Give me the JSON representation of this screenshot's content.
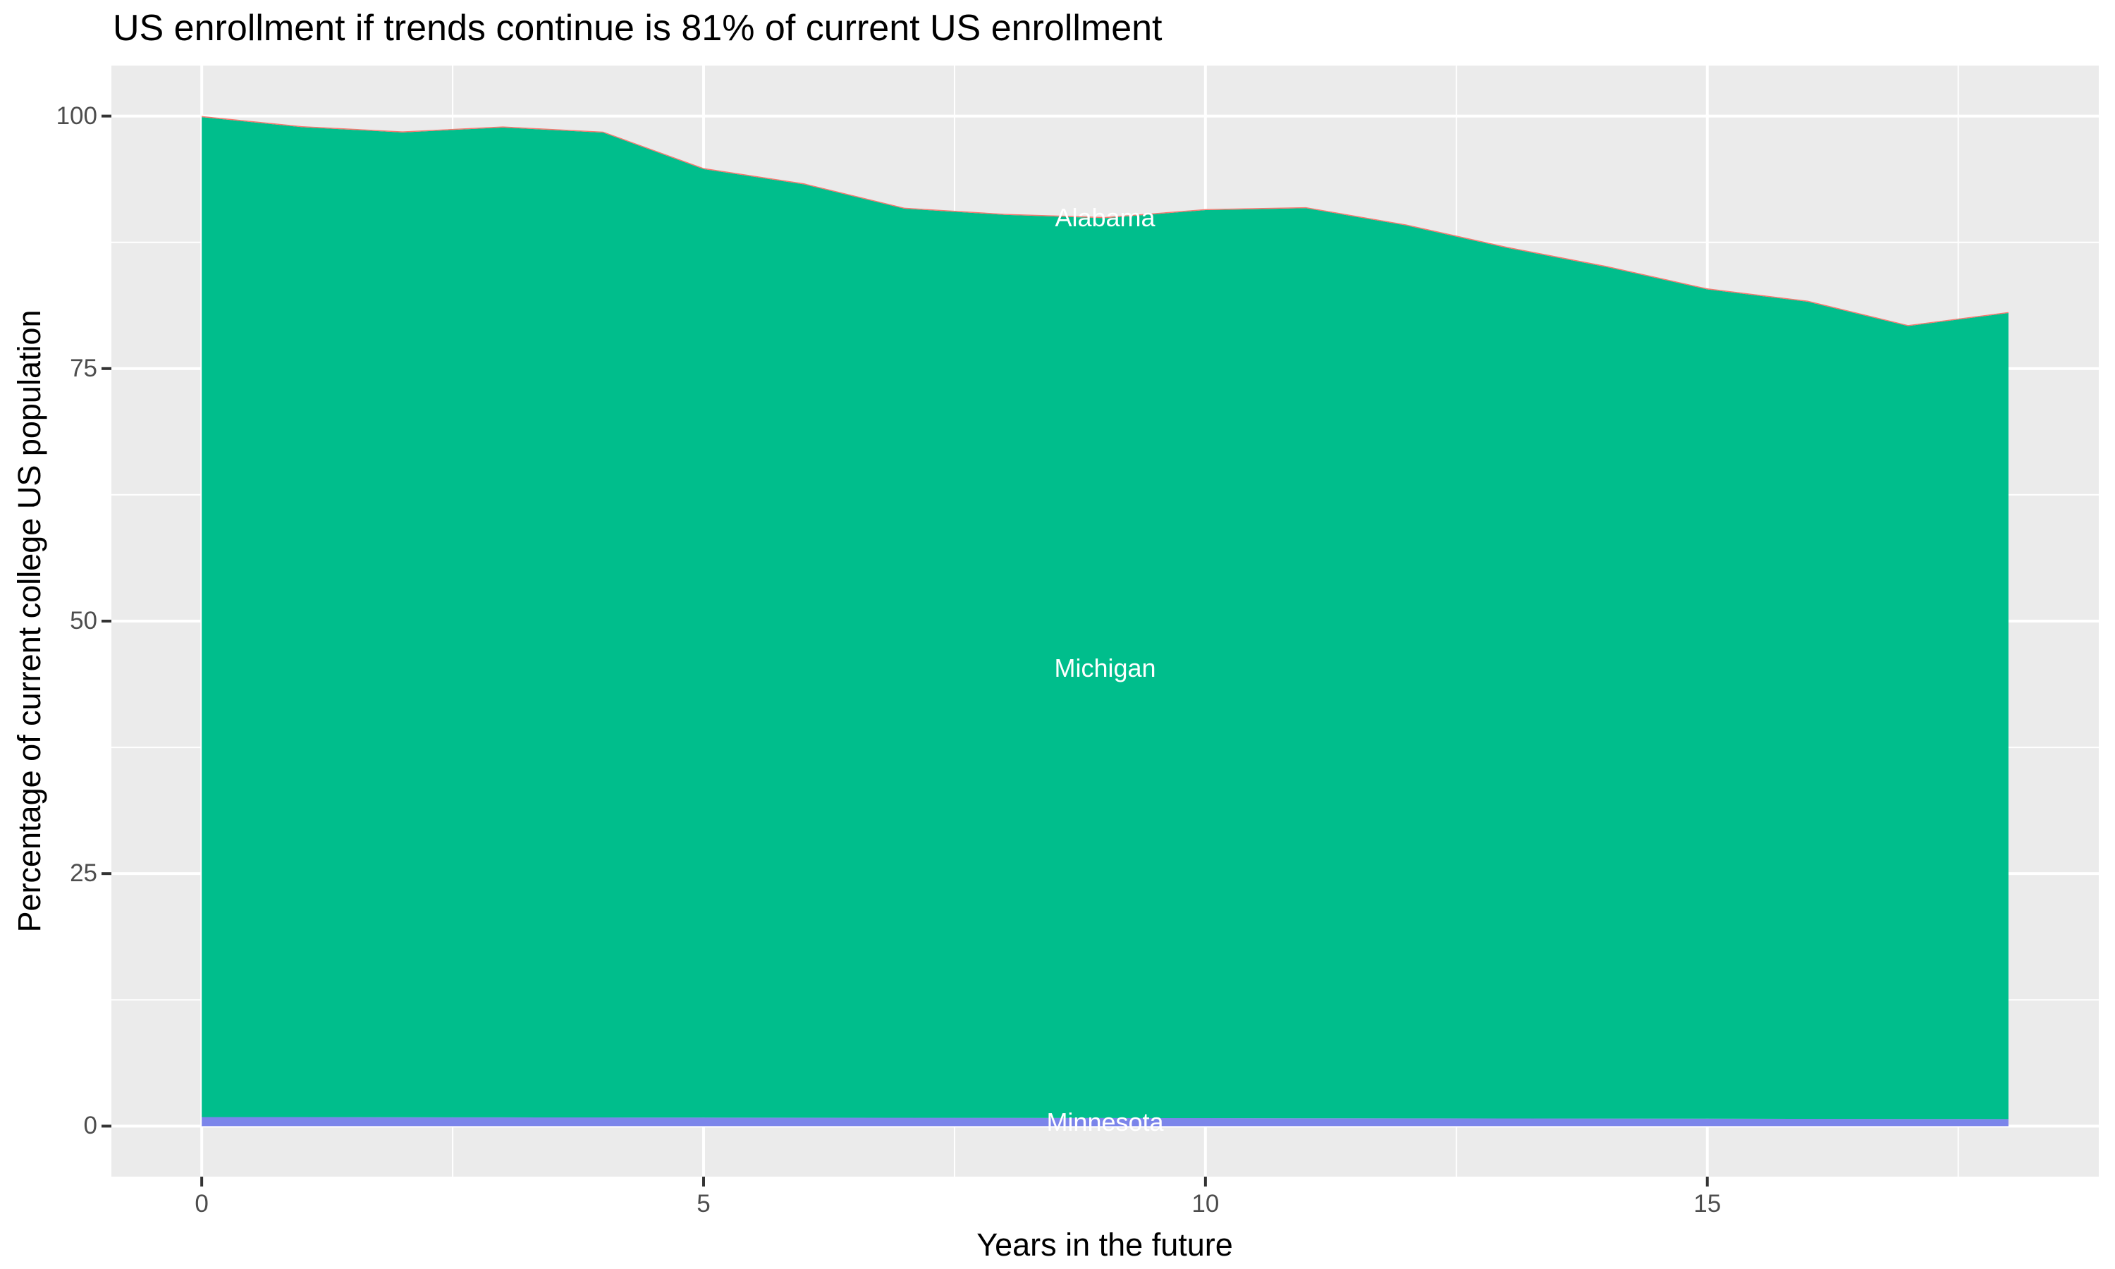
{
  "title": "US enrollment if trends continue is 81% of current US enrollment",
  "axes": {
    "x_title": "Years in the future",
    "y_title": "Percentage of current college US population",
    "x_tick_labels": [
      "0",
      "5",
      "10",
      "15"
    ],
    "y_tick_labels": [
      "100",
      "75",
      "50",
      "25",
      "0"
    ]
  },
  "colors": {
    "panel_background": "#EBEBEB",
    "gridline": "#FFFFFF",
    "tick_mark": "#333333",
    "tick_text": "#4D4D4D",
    "title_text": "#000000",
    "area_label_text": "#FFFFFF",
    "michigan_fill": "#00BE8C",
    "minnesota_fill": "#7B85EA",
    "alabama_fill": "#F8766D"
  },
  "chart_data": {
    "type": "area",
    "stacked": true,
    "title": "US enrollment if trends continue is 81% of current US enrollment",
    "xlabel": "Years in the future",
    "ylabel": "Percentage of current college US population",
    "x": [
      0,
      1,
      2,
      3,
      4,
      5,
      6,
      7,
      8,
      9,
      10,
      11,
      12,
      13,
      14,
      15,
      16,
      17,
      18
    ],
    "xlim": [
      -0.9,
      18.9
    ],
    "ylim": [
      -5,
      105
    ],
    "x_tick_values": [
      0,
      5,
      10,
      15
    ],
    "y_tick_values": [
      100,
      75,
      50,
      25,
      0
    ],
    "x_minor_tick_values": [
      2.5,
      7.5,
      12.5,
      17.5
    ],
    "y_minor_tick_values": [
      12.5,
      37.5,
      62.5,
      87.5
    ],
    "grid": true,
    "legend": "none",
    "series": [
      {
        "name": "Minnesota",
        "color": "#7B85EA",
        "values": [
          0.9,
          0.9,
          0.88,
          0.87,
          0.86,
          0.85,
          0.84,
          0.83,
          0.82,
          0.8,
          0.79,
          0.78,
          0.77,
          0.76,
          0.75,
          0.74,
          0.72,
          0.71,
          0.7
        ]
      },
      {
        "name": "Michigan",
        "color": "#00BE8C",
        "values": [
          99.0,
          98.0,
          97.5,
          98.0,
          97.5,
          93.9,
          92.4,
          90.0,
          89.4,
          89.1,
          89.9,
          90.1,
          88.4,
          86.2,
          84.3,
          82.1,
          80.9,
          78.5,
          79.8
        ]
      },
      {
        "name": "Alabama",
        "color": "#F8766D",
        "values": [
          0.1,
          0.1,
          0.1,
          0.1,
          0.1,
          0.1,
          0.1,
          0.1,
          0.1,
          0.1,
          0.1,
          0.1,
          0.1,
          0.1,
          0.1,
          0.1,
          0.1,
          0.1,
          0.1
        ]
      }
    ],
    "totals": [
      100.0,
      99.0,
      98.5,
      99.0,
      98.5,
      94.9,
      93.3,
      90.9,
      90.3,
      90.0,
      90.8,
      91.0,
      89.3,
      87.1,
      85.1,
      82.9,
      81.7,
      79.3,
      80.6
    ],
    "annotations": [
      {
        "text": "Alabama",
        "x": 9,
        "placement": "band-middle"
      },
      {
        "text": "Michigan",
        "x": 9,
        "placement": "band-middle"
      },
      {
        "text": "Minnesota",
        "x": 9,
        "placement": "band-middle"
      }
    ]
  }
}
